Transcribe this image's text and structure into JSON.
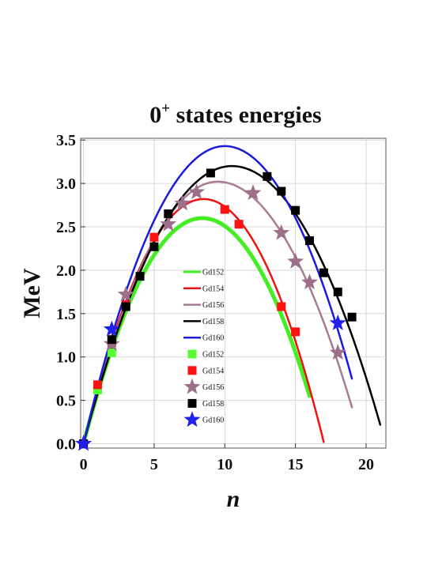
{
  "chart_data": {
    "type": "scatter",
    "title_main": "0",
    "title_sup": "+",
    "title_rest": " states energies",
    "xlabel": "n",
    "ylabel": "MeV",
    "xlim": [
      -0.2,
      21.4
    ],
    "ylim": [
      -0.05,
      3.52
    ],
    "x_ticks": [
      0,
      5,
      10,
      15,
      20
    ],
    "x_tick_labels": [
      "0",
      "5",
      "10",
      "15",
      "20"
    ],
    "y_ticks": [
      0.0,
      0.5,
      1.0,
      1.5,
      2.0,
      2.5,
      3.0,
      3.5
    ],
    "y_tick_labels": [
      "0.0",
      "0.5",
      "1.0",
      "1.5",
      "2.0",
      "2.5",
      "3.0",
      "3.5"
    ],
    "grid": true,
    "legend_position": "center-left",
    "curves": [
      {
        "name": "Gd152",
        "color": "#44ee22",
        "width": 5,
        "n_max": 16,
        "peak_n": 8.4,
        "peak_e": 2.6,
        "end_e": 0.55
      },
      {
        "name": "Gd154",
        "color": "#ee1111",
        "width": 2.5,
        "n_max": 17,
        "peak_n": 8.5,
        "peak_e": 2.82,
        "end_e": 0.02
      },
      {
        "name": "Gd156",
        "color": "#a87a94",
        "width": 2.5,
        "n_max": 19,
        "peak_n": 9.5,
        "peak_e": 3.02,
        "end_e": 0.42
      },
      {
        "name": "Gd158",
        "color": "#000000",
        "width": 2.5,
        "n_max": 21,
        "peak_n": 10.5,
        "peak_e": 3.2,
        "end_e": 0.22
      },
      {
        "name": "Gd160",
        "color": "#1a1add",
        "width": 2.5,
        "n_max": 19,
        "peak_n": 10.0,
        "peak_e": 3.43,
        "end_e": 0.75
      }
    ],
    "points": [
      {
        "name": "Gd152",
        "marker": "square",
        "color": "#55ff33",
        "x": [
          0,
          1,
          2,
          3,
          4
        ],
        "y": [
          0.0,
          0.62,
          1.05,
          1.58,
          1.93
        ]
      },
      {
        "name": "Gd154",
        "marker": "square",
        "color": "#ff1111",
        "x": [
          0,
          1,
          2,
          3,
          5,
          10,
          11,
          14,
          15
        ],
        "y": [
          0.0,
          0.68,
          1.17,
          1.6,
          2.38,
          2.7,
          2.53,
          1.58,
          1.29
        ]
      },
      {
        "name": "Gd156",
        "marker": "star",
        "color": "#9e6f8a",
        "x": [
          0,
          2,
          3,
          6,
          7,
          8,
          12,
          14,
          15,
          16,
          18
        ],
        "y": [
          0.0,
          1.15,
          1.72,
          2.53,
          2.77,
          2.9,
          2.89,
          2.43,
          2.1,
          1.86,
          1.05
        ]
      },
      {
        "name": "Gd158",
        "marker": "square",
        "color": "#000000",
        "x": [
          0,
          2,
          3,
          4,
          5,
          6,
          9,
          13,
          14,
          15,
          16,
          17,
          18,
          19
        ],
        "y": [
          0.0,
          1.2,
          1.58,
          1.93,
          2.27,
          2.65,
          3.12,
          3.08,
          2.91,
          2.69,
          2.34,
          1.97,
          1.75,
          1.46
        ]
      },
      {
        "name": "Gd160",
        "marker": "star",
        "color": "#1f1fee",
        "x": [
          0,
          2,
          18
        ],
        "y": [
          0.0,
          1.32,
          1.39
        ]
      }
    ]
  }
}
